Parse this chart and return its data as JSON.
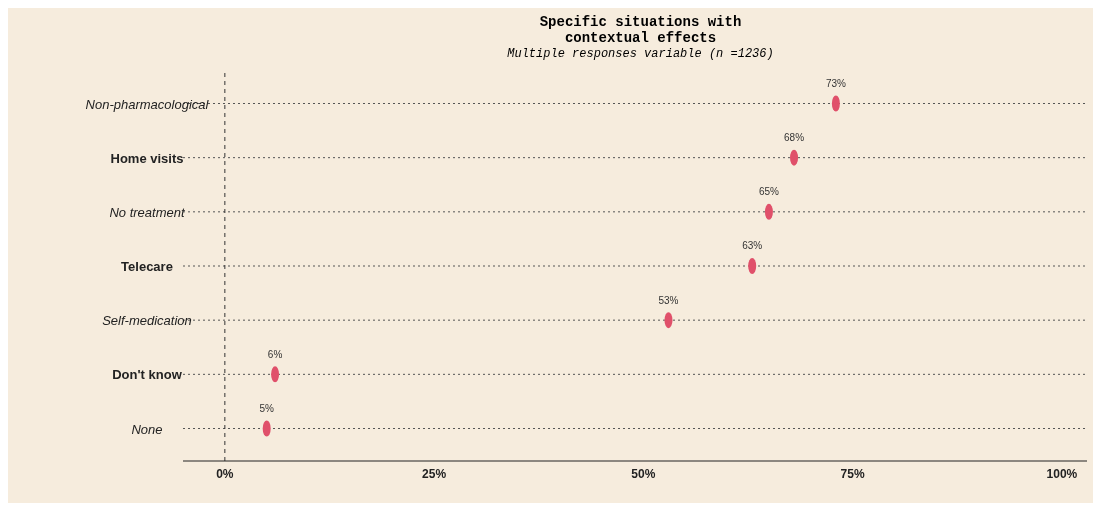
{
  "chart_data": {
    "type": "scatter",
    "title": "Specific situations with\ncontextual effects",
    "subtitle": "Multiple responses variable (n =1236)",
    "categories": [
      "Non-pharmacological",
      "Home visits",
      "No treatment",
      "Telecare",
      "Self-medication",
      "Don't know",
      "None"
    ],
    "values": [
      73,
      68,
      65,
      63,
      53,
      6,
      5
    ],
    "value_labels": [
      "73%",
      "68%",
      "65%",
      "63%",
      "53%",
      "6%",
      "5%"
    ],
    "color": "#e0506a",
    "orientation": "horizontal",
    "xlim": [
      -5,
      103
    ],
    "xticks": [
      {
        "value": 0,
        "label": "0%"
      },
      {
        "value": 25,
        "label": "25%"
      },
      {
        "value": 50,
        "label": "50%"
      },
      {
        "value": 75,
        "label": "75%"
      },
      {
        "value": 100,
        "label": "100%"
      }
    ],
    "grid": "y",
    "ref_lines": [
      {
        "axis": "x",
        "value": 0,
        "line_style": "dashed",
        "color": "#333333"
      }
    ]
  }
}
